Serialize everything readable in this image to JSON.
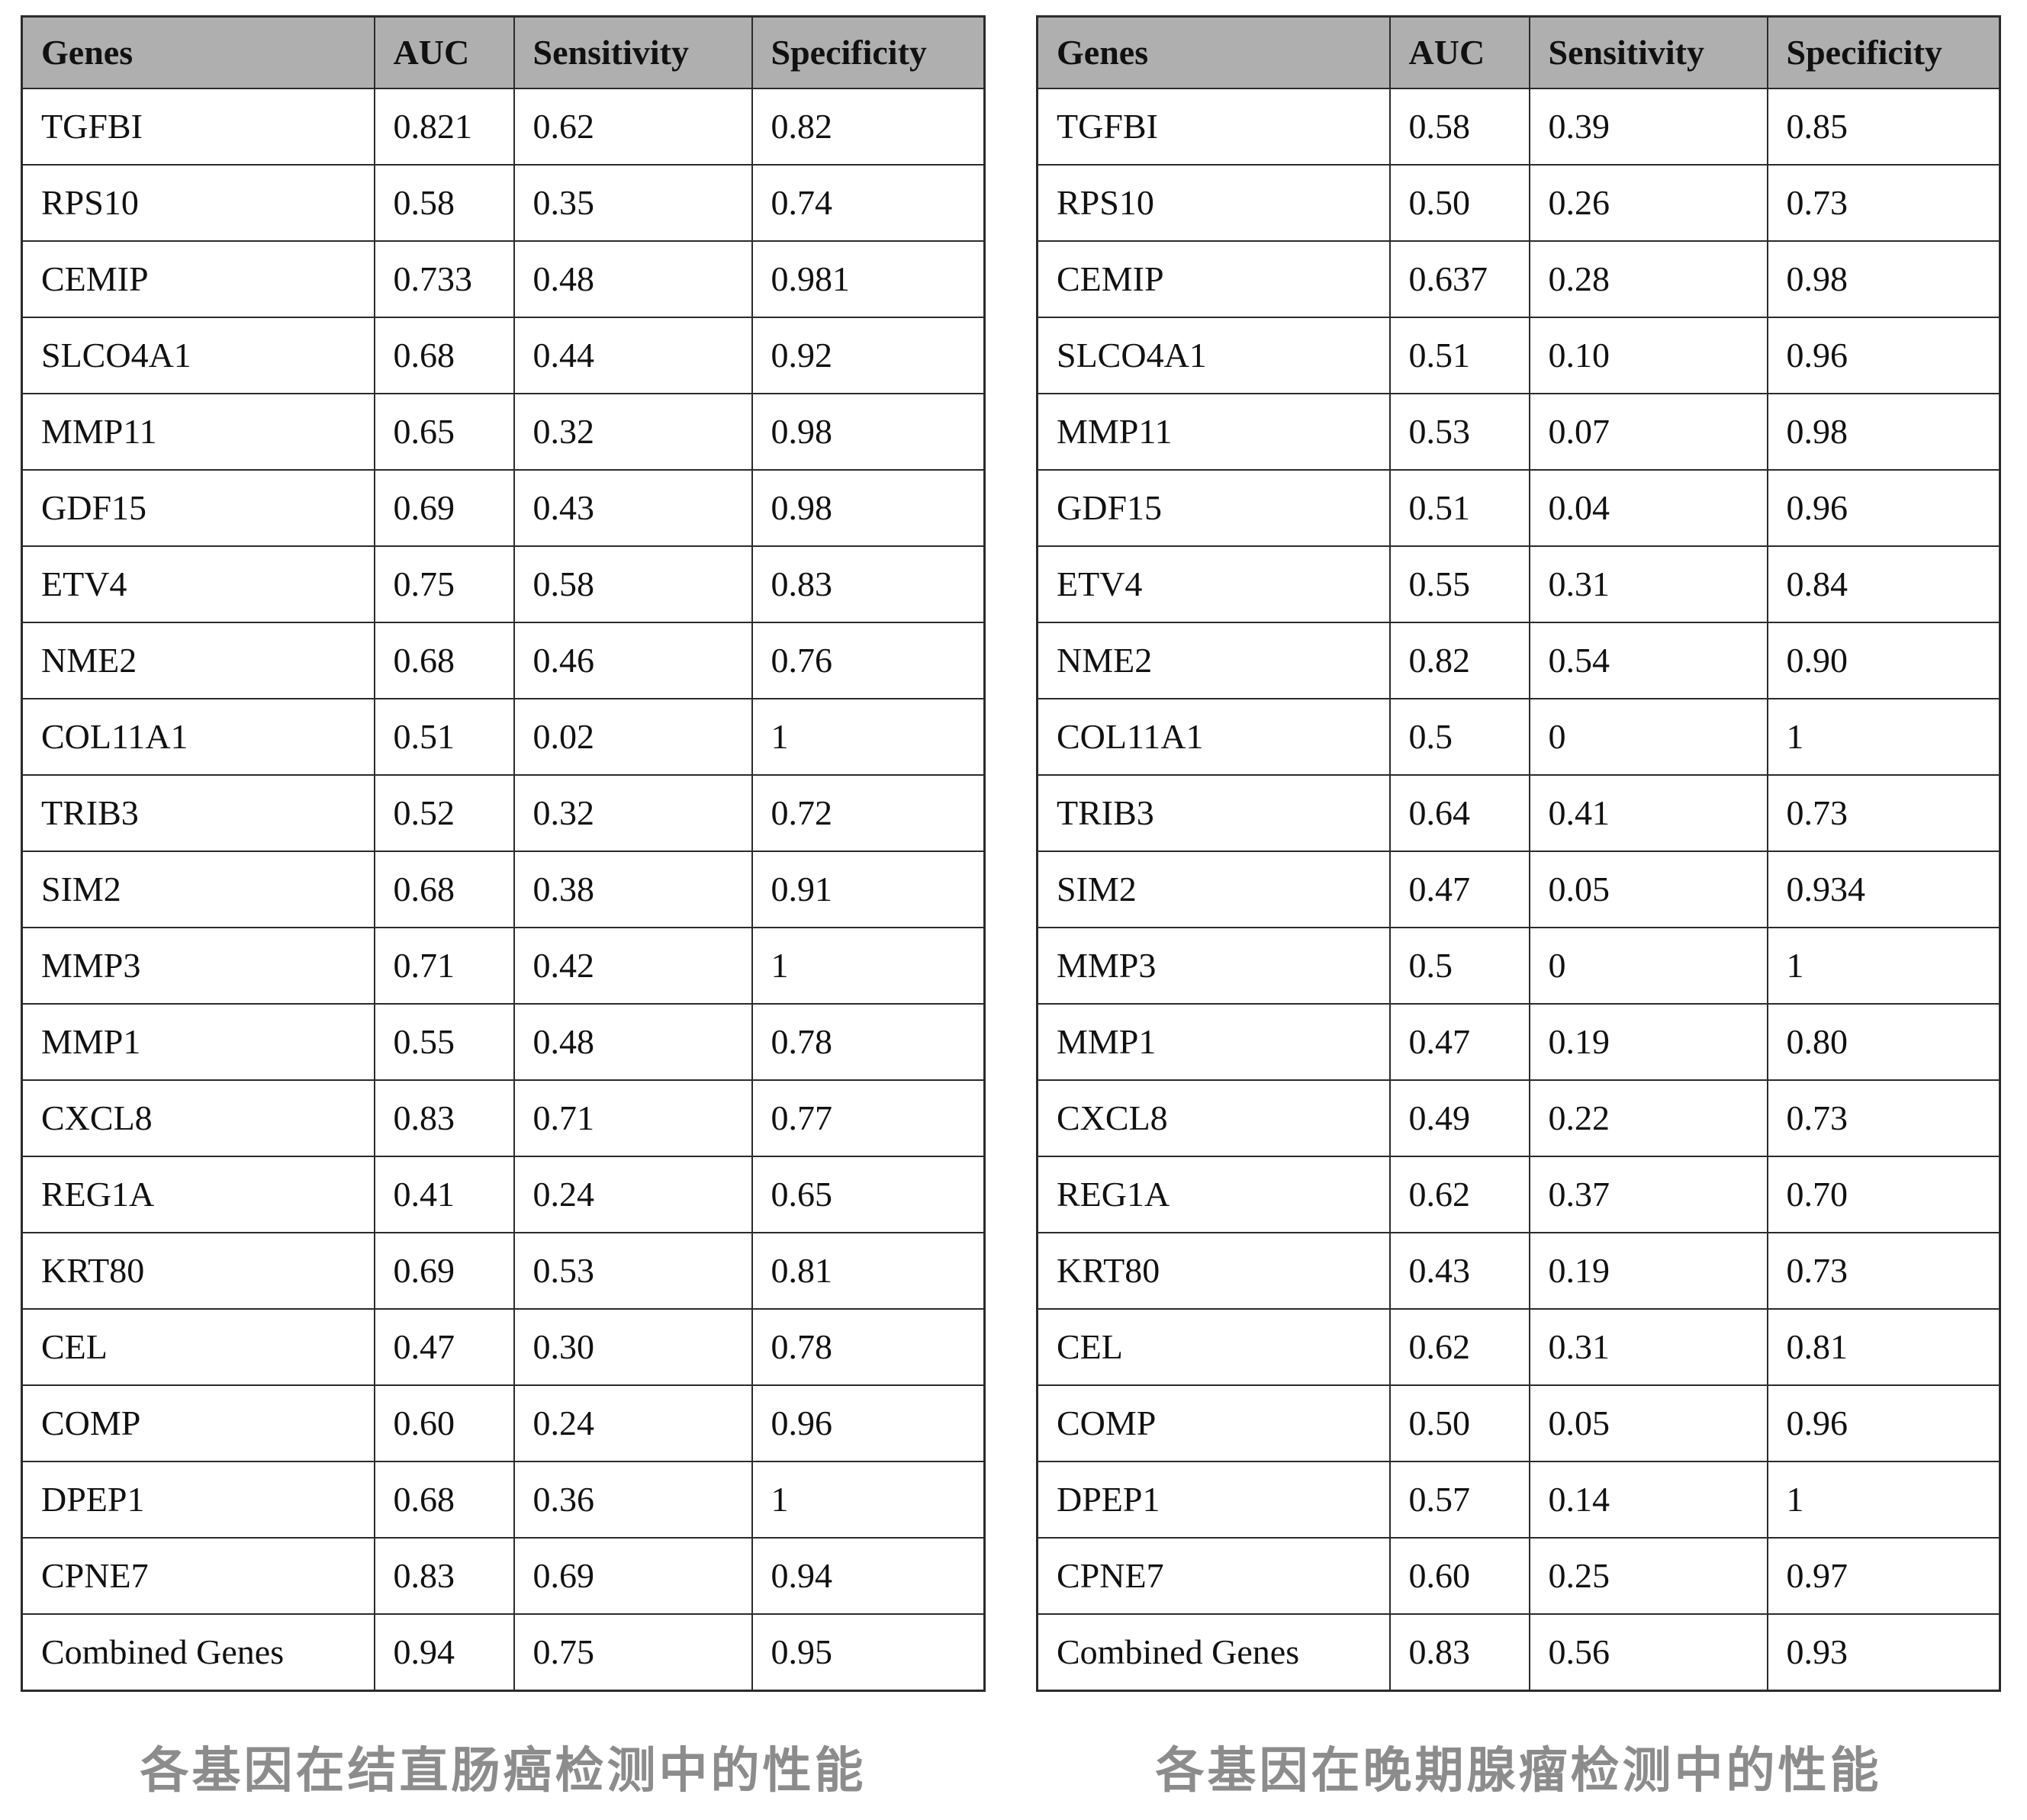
{
  "colors": {
    "page_bg": "#ffffff",
    "header_bg": "#afafaf",
    "border": "#2b2b2b",
    "text": "#111111",
    "caption_text": "#8c8c8c"
  },
  "tables": [
    {
      "caption": "各基因在结直肠癌检测中的性能",
      "columns": [
        "Genes",
        "AUC",
        "Sensitivity",
        "Specificity"
      ],
      "rows": [
        [
          "TGFBI",
          "0.821",
          "0.62",
          "0.82"
        ],
        [
          "RPS10",
          "0.58",
          "0.35",
          "0.74"
        ],
        [
          "CEMIP",
          "0.733",
          "0.48",
          "0.981"
        ],
        [
          "SLCO4A1",
          "0.68",
          "0.44",
          "0.92"
        ],
        [
          "MMP11",
          "0.65",
          "0.32",
          "0.98"
        ],
        [
          "GDF15",
          "0.69",
          "0.43",
          "0.98"
        ],
        [
          "ETV4",
          "0.75",
          "0.58",
          "0.83"
        ],
        [
          "NME2",
          "0.68",
          "0.46",
          "0.76"
        ],
        [
          "COL11A1",
          "0.51",
          "0.02",
          "1"
        ],
        [
          "TRIB3",
          "0.52",
          "0.32",
          "0.72"
        ],
        [
          "SIM2",
          "0.68",
          "0.38",
          "0.91"
        ],
        [
          "MMP3",
          "0.71",
          "0.42",
          "1"
        ],
        [
          "MMP1",
          "0.55",
          "0.48",
          "0.78"
        ],
        [
          "CXCL8",
          "0.83",
          "0.71",
          "0.77"
        ],
        [
          "REG1A",
          "0.41",
          "0.24",
          "0.65"
        ],
        [
          "KRT80",
          "0.69",
          "0.53",
          "0.81"
        ],
        [
          "CEL",
          "0.47",
          "0.30",
          "0.78"
        ],
        [
          "COMP",
          "0.60",
          "0.24",
          "0.96"
        ],
        [
          "DPEP1",
          "0.68",
          "0.36",
          "1"
        ],
        [
          "CPNE7",
          "0.83",
          "0.69",
          "0.94"
        ],
        [
          "Combined Genes",
          "0.94",
          "0.75",
          "0.95"
        ]
      ]
    },
    {
      "caption": "各基因在晚期腺瘤检测中的性能",
      "columns": [
        "Genes",
        "AUC",
        "Sensitivity",
        "Specificity"
      ],
      "rows": [
        [
          "TGFBI",
          "0.58",
          "0.39",
          "0.85"
        ],
        [
          "RPS10",
          "0.50",
          "0.26",
          "0.73"
        ],
        [
          "CEMIP",
          "0.637",
          "0.28",
          "0.98"
        ],
        [
          "SLCO4A1",
          "0.51",
          "0.10",
          "0.96"
        ],
        [
          "MMP11",
          "0.53",
          "0.07",
          "0.98"
        ],
        [
          "GDF15",
          "0.51",
          "0.04",
          "0.96"
        ],
        [
          "ETV4",
          "0.55",
          "0.31",
          "0.84"
        ],
        [
          "NME2",
          "0.82",
          "0.54",
          "0.90"
        ],
        [
          "COL11A1",
          "0.5",
          "0",
          "1"
        ],
        [
          "TRIB3",
          "0.64",
          "0.41",
          "0.73"
        ],
        [
          "SIM2",
          "0.47",
          "0.05",
          "0.934"
        ],
        [
          "MMP3",
          "0.5",
          "0",
          "1"
        ],
        [
          "MMP1",
          "0.47",
          "0.19",
          "0.80"
        ],
        [
          "CXCL8",
          "0.49",
          "0.22",
          "0.73"
        ],
        [
          "REG1A",
          "0.62",
          "0.37",
          "0.70"
        ],
        [
          "KRT80",
          "0.43",
          "0.19",
          "0.73"
        ],
        [
          "CEL",
          "0.62",
          "0.31",
          "0.81"
        ],
        [
          "COMP",
          "0.50",
          "0.05",
          "0.96"
        ],
        [
          "DPEP1",
          "0.57",
          "0.14",
          "1"
        ],
        [
          "CPNE7",
          "0.60",
          "0.25",
          "0.97"
        ],
        [
          "Combined Genes",
          "0.83",
          "0.56",
          "0.93"
        ]
      ]
    }
  ]
}
